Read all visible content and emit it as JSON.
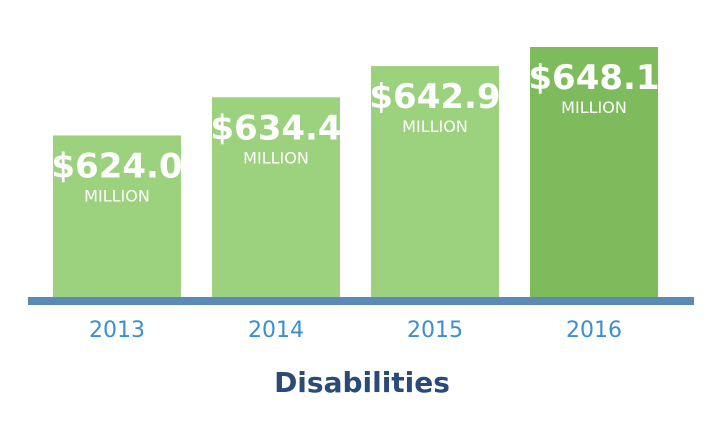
{
  "chart_data": {
    "type": "bar",
    "title": "Disabilities",
    "categories": [
      "2013",
      "2014",
      "2015",
      "2016"
    ],
    "values": [
      624.0,
      634.4,
      642.9,
      648.1
    ],
    "value_labels": [
      "$624.0",
      "$634.4",
      "$642.9",
      "$648.1"
    ],
    "unit_label": "MILLION",
    "xlabel": "",
    "ylabel": "",
    "ylim": [
      580,
      650
    ],
    "grid": false,
    "legend": "none",
    "colors": {
      "bar": "#9cd27e",
      "bar_highlight": "#7dbb5c",
      "baseline": "#5b8bb5",
      "tick_label": "#3a8fd0",
      "title": "#2a4a78"
    }
  }
}
